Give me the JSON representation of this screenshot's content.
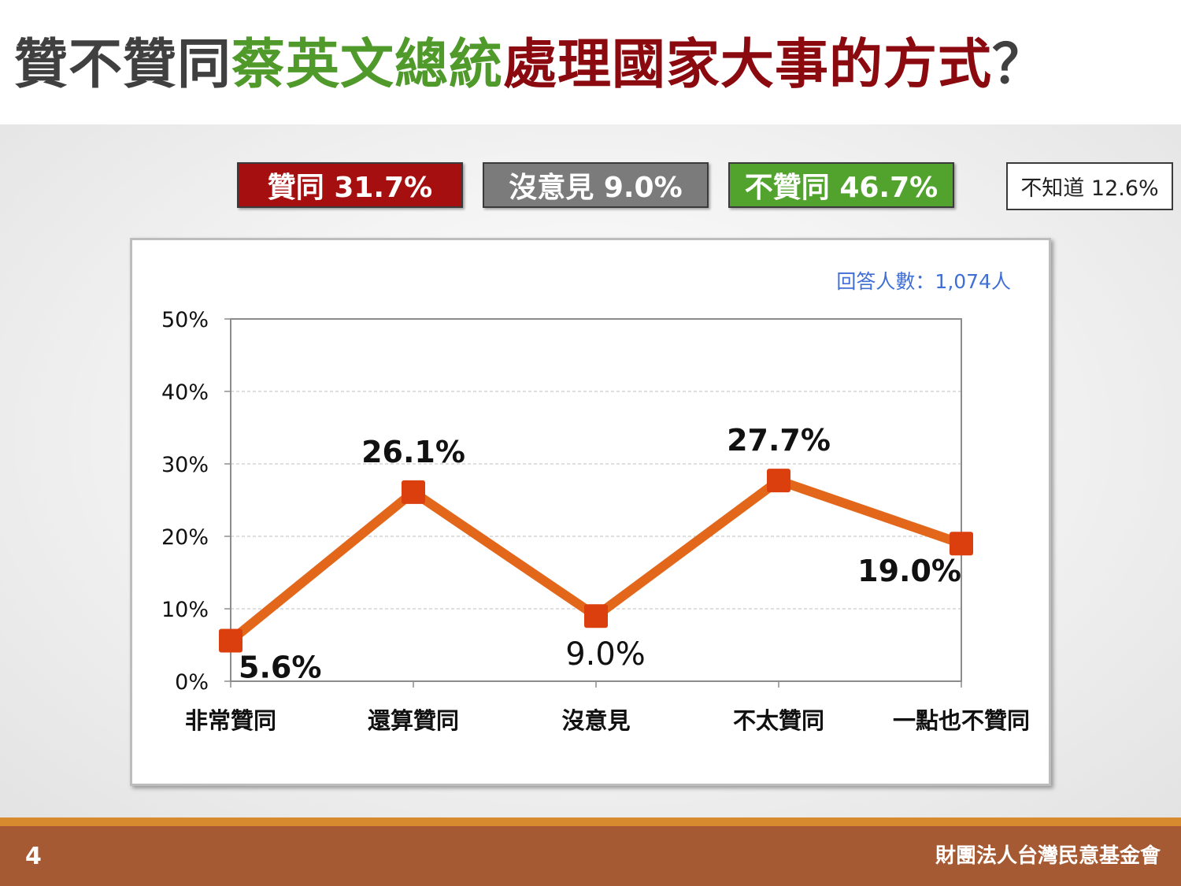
{
  "title": {
    "segments": [
      {
        "text": "贊不贊同",
        "color": "#404040"
      },
      {
        "text": "蔡英文總統",
        "color": "#4f9a2b"
      },
      {
        "text": "處理國家大事的方式",
        "color": "#8b0a0f"
      },
      {
        "text": "？",
        "color": "#404040"
      }
    ]
  },
  "summary": [
    {
      "label": "贊同 31.7%",
      "bg": "#a50f0f",
      "color": "#ffffff"
    },
    {
      "label": "沒意見 9.0%",
      "bg": "#7b7b7b",
      "color": "#ffffff"
    },
    {
      "label": "不贊同 46.7%",
      "bg": "#52a22e",
      "color": "#ffffff"
    },
    {
      "label": "不知道 12.6%",
      "bg": "#ffffff",
      "color": "#222222"
    }
  ],
  "respondents": "回答人數：1,074人",
  "chart_data": {
    "type": "line",
    "categories": [
      "非常贊同",
      "還算贊同",
      "沒意見",
      "不太贊同",
      "一點也不贊同"
    ],
    "values": [
      5.6,
      26.1,
      9.0,
      27.7,
      19.0
    ],
    "data_labels": [
      "5.6%",
      "26.1%",
      "9.0%",
      "27.7%",
      "19.0%"
    ],
    "y_ticks": [
      "0%",
      "10%",
      "20%",
      "30%",
      "40%",
      "50%"
    ],
    "ylim": [
      0,
      50
    ],
    "grid": true,
    "line_color": "#e2671b",
    "marker_color": "#db3f0e",
    "xlabel": "",
    "ylabel": "",
    "title": ""
  },
  "footer": {
    "page": "4",
    "org": "財團法人台灣民意基金會"
  }
}
